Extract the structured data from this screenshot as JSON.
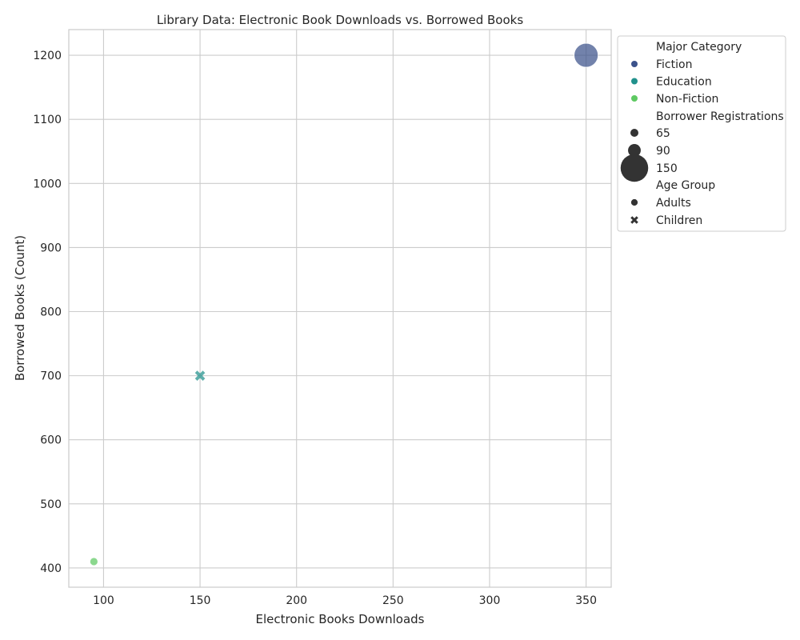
{
  "chart_data": {
    "type": "scatter",
    "title": "Library Data: Electronic Book Downloads vs. Borrowed Books",
    "xlabel": "Electronic Books Downloads",
    "ylabel": "Borrowed Books (Count)",
    "xlim": [
      82,
      363
    ],
    "ylim": [
      370,
      1240
    ],
    "xticks": [
      100,
      150,
      200,
      250,
      300,
      350
    ],
    "yticks": [
      400,
      500,
      600,
      700,
      800,
      900,
      1000,
      1100,
      1200
    ],
    "grid": true,
    "legend_placement": "outside-right-top",
    "points": [
      {
        "x": 350,
        "y": 1200,
        "category": "Fiction",
        "registrations": 150,
        "age_group": "Adults"
      },
      {
        "x": 150,
        "y": 700,
        "category": "Education",
        "registrations": 90,
        "age_group": "Children"
      },
      {
        "x": 95,
        "y": 410,
        "category": "Non-Fiction",
        "registrations": 65,
        "age_group": "Adults"
      }
    ],
    "legend": {
      "hue_title": "Major Category",
      "hue_entries": [
        {
          "label": "Fiction",
          "color": "#3b528b"
        },
        {
          "label": "Education",
          "color": "#21918c"
        },
        {
          "label": "Non-Fiction",
          "color": "#5ec962"
        }
      ],
      "size_title": "Borrower Registrations",
      "size_entries": [
        {
          "label": "65",
          "value": 65
        },
        {
          "label": "90",
          "value": 90
        },
        {
          "label": "150",
          "value": 150
        }
      ],
      "style_title": "Age Group",
      "style_entries": [
        {
          "label": "Adults",
          "marker": "circle"
        },
        {
          "label": "Children",
          "marker": "x"
        }
      ]
    }
  }
}
